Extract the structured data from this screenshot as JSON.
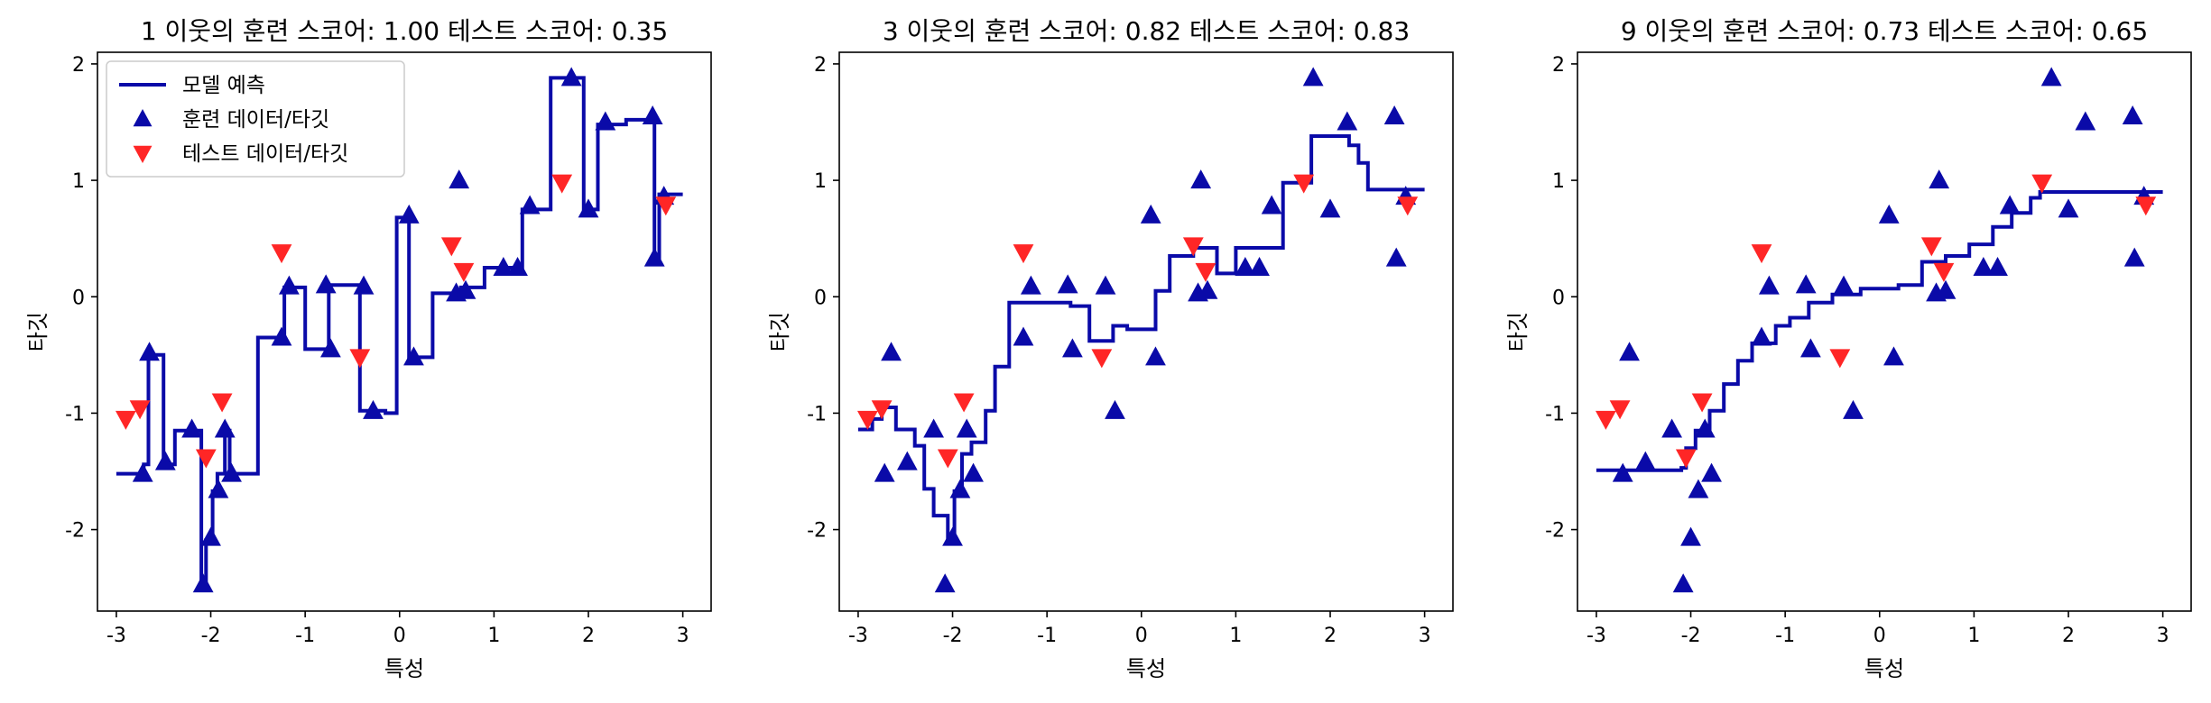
{
  "colors": {
    "prediction": "#0a0aa8",
    "train": "#0a0aa8",
    "test": "#ff2626"
  },
  "chart_data": [
    {
      "type": "line",
      "title": "1 이웃의 훈련 스코어: 1.00 테스트 스코어: 0.35",
      "xlabel": "특성",
      "ylabel": "타깃",
      "xlim": [
        -3.2,
        3.3
      ],
      "ylim": [
        -2.7,
        2.1
      ],
      "xticks": [
        "-3",
        "-2",
        "-1",
        "0",
        "1",
        "2",
        "3"
      ],
      "yticks": [
        "-2",
        "-1",
        "0",
        "1",
        "2"
      ],
      "legend": {
        "position": "upper-left",
        "entries": [
          "모델 예측",
          "훈련 데이터/타깃",
          "테스트 데이터/타깃"
        ]
      },
      "prediction": [
        [
          -3.0,
          -1.52
        ],
        [
          -2.71,
          -1.52
        ],
        [
          -2.71,
          -1.44
        ],
        [
          -2.66,
          -1.44
        ],
        [
          -2.66,
          -0.5
        ],
        [
          -2.5,
          -0.5
        ],
        [
          -2.5,
          -1.44
        ],
        [
          -2.38,
          -1.44
        ],
        [
          -2.38,
          -1.15
        ],
        [
          -2.1,
          -1.15
        ],
        [
          -2.1,
          -2.48
        ],
        [
          -2.05,
          -2.48
        ],
        [
          -2.05,
          -2.09
        ],
        [
          -1.98,
          -2.09
        ],
        [
          -1.98,
          -1.67
        ],
        [
          -1.93,
          -1.67
        ],
        [
          -1.93,
          -1.52
        ],
        [
          -1.85,
          -1.52
        ],
        [
          -1.85,
          -1.15
        ],
        [
          -1.8,
          -1.15
        ],
        [
          -1.8,
          -1.52
        ],
        [
          -1.5,
          -1.52
        ],
        [
          -1.5,
          -0.35
        ],
        [
          -1.22,
          -0.35
        ],
        [
          -1.22,
          0.08
        ],
        [
          -1.0,
          0.08
        ],
        [
          -1.0,
          -0.45
        ],
        [
          -0.75,
          -0.45
        ],
        [
          -0.75,
          0.1
        ],
        [
          -0.42,
          0.1
        ],
        [
          -0.42,
          -0.98
        ],
        [
          -0.15,
          -0.98
        ],
        [
          -0.15,
          -1.0
        ],
        [
          -0.03,
          -1.0
        ],
        [
          -0.03,
          0.68
        ],
        [
          0.1,
          0.68
        ],
        [
          0.1,
          -0.52
        ],
        [
          0.35,
          -0.52
        ],
        [
          0.35,
          0.03
        ],
        [
          0.65,
          0.03
        ],
        [
          0.65,
          0.08
        ],
        [
          0.9,
          0.08
        ],
        [
          0.9,
          0.25
        ],
        [
          1.3,
          0.25
        ],
        [
          1.3,
          0.75
        ],
        [
          1.6,
          0.75
        ],
        [
          1.6,
          1.88
        ],
        [
          1.95,
          1.88
        ],
        [
          1.95,
          0.75
        ],
        [
          2.1,
          0.75
        ],
        [
          2.1,
          1.48
        ],
        [
          2.4,
          1.48
        ],
        [
          2.4,
          1.52
        ],
        [
          2.7,
          1.52
        ],
        [
          2.7,
          0.3
        ],
        [
          2.75,
          0.3
        ],
        [
          2.75,
          0.88
        ],
        [
          3.0,
          0.88
        ]
      ],
      "train": [
        [
          -2.72,
          -1.52
        ],
        [
          -2.65,
          -0.48
        ],
        [
          -2.48,
          -1.42
        ],
        [
          -2.2,
          -1.14
        ],
        [
          -2.08,
          -2.47
        ],
        [
          -2.0,
          -2.07
        ],
        [
          -1.92,
          -1.66
        ],
        [
          -1.85,
          -1.14
        ],
        [
          -1.78,
          -1.52
        ],
        [
          -1.25,
          -0.35
        ],
        [
          -1.17,
          0.09
        ],
        [
          -0.78,
          0.1
        ],
        [
          -0.73,
          -0.45
        ],
        [
          -0.38,
          0.09
        ],
        [
          -0.28,
          -0.98
        ],
        [
          0.1,
          0.7
        ],
        [
          0.15,
          -0.52
        ],
        [
          0.6,
          0.03
        ],
        [
          0.63,
          1.0
        ],
        [
          0.7,
          0.05
        ],
        [
          1.1,
          0.25
        ],
        [
          1.25,
          0.25
        ],
        [
          1.38,
          0.78
        ],
        [
          1.82,
          1.88
        ],
        [
          2.0,
          0.75
        ],
        [
          2.18,
          1.5
        ],
        [
          2.68,
          1.55
        ],
        [
          2.7,
          0.33
        ],
        [
          2.8,
          0.86
        ]
      ],
      "test": [
        [
          -2.9,
          -1.05
        ],
        [
          -2.75,
          -0.96
        ],
        [
          -2.05,
          -1.38
        ],
        [
          -1.88,
          -0.9
        ],
        [
          -1.25,
          0.38
        ],
        [
          -0.42,
          -0.52
        ],
        [
          0.55,
          0.44
        ],
        [
          0.68,
          0.22
        ],
        [
          1.72,
          0.98
        ],
        [
          2.82,
          0.79
        ]
      ]
    },
    {
      "type": "line",
      "title": "3 이웃의 훈련 스코어: 0.82 테스트 스코어: 0.83",
      "xlabel": "특성",
      "ylabel": "타깃",
      "xlim": [
        -3.2,
        3.3
      ],
      "ylim": [
        -2.7,
        2.1
      ],
      "xticks": [
        "-3",
        "-2",
        "-1",
        "0",
        "1",
        "2",
        "3"
      ],
      "yticks": [
        "-2",
        "-1",
        "0",
        "1",
        "2"
      ],
      "prediction": [
        [
          -3.0,
          -1.14
        ],
        [
          -2.85,
          -1.14
        ],
        [
          -2.85,
          -1.05
        ],
        [
          -2.75,
          -1.05
        ],
        [
          -2.75,
          -0.95
        ],
        [
          -2.6,
          -0.95
        ],
        [
          -2.6,
          -1.14
        ],
        [
          -2.4,
          -1.14
        ],
        [
          -2.4,
          -1.28
        ],
        [
          -2.3,
          -1.28
        ],
        [
          -2.3,
          -1.65
        ],
        [
          -2.2,
          -1.65
        ],
        [
          -2.2,
          -1.88
        ],
        [
          -2.05,
          -1.88
        ],
        [
          -2.05,
          -2.09
        ],
        [
          -1.98,
          -2.09
        ],
        [
          -1.98,
          -1.67
        ],
        [
          -1.9,
          -1.67
        ],
        [
          -1.9,
          -1.35
        ],
        [
          -1.8,
          -1.35
        ],
        [
          -1.8,
          -1.25
        ],
        [
          -1.65,
          -1.25
        ],
        [
          -1.65,
          -0.98
        ],
        [
          -1.55,
          -0.98
        ],
        [
          -1.55,
          -0.6
        ],
        [
          -1.4,
          -0.6
        ],
        [
          -1.4,
          -0.05
        ],
        [
          -0.75,
          -0.05
        ],
        [
          -0.75,
          -0.08
        ],
        [
          -0.55,
          -0.08
        ],
        [
          -0.55,
          -0.38
        ],
        [
          -0.3,
          -0.38
        ],
        [
          -0.3,
          -0.25
        ],
        [
          -0.15,
          -0.25
        ],
        [
          -0.15,
          -0.28
        ],
        [
          0.15,
          -0.28
        ],
        [
          0.15,
          0.05
        ],
        [
          0.3,
          0.05
        ],
        [
          0.3,
          0.35
        ],
        [
          0.55,
          0.35
        ],
        [
          0.55,
          0.42
        ],
        [
          0.8,
          0.42
        ],
        [
          0.8,
          0.2
        ],
        [
          1.0,
          0.2
        ],
        [
          1.0,
          0.42
        ],
        [
          1.5,
          0.42
        ],
        [
          1.5,
          0.98
        ],
        [
          1.8,
          0.98
        ],
        [
          1.8,
          1.38
        ],
        [
          2.2,
          1.38
        ],
        [
          2.2,
          1.3
        ],
        [
          2.3,
          1.3
        ],
        [
          2.3,
          1.15
        ],
        [
          2.4,
          1.15
        ],
        [
          2.4,
          0.92
        ],
        [
          3.0,
          0.92
        ]
      ],
      "train": [
        [
          -2.72,
          -1.52
        ],
        [
          -2.65,
          -0.48
        ],
        [
          -2.48,
          -1.42
        ],
        [
          -2.2,
          -1.14
        ],
        [
          -2.08,
          -2.47
        ],
        [
          -2.0,
          -2.07
        ],
        [
          -1.92,
          -1.66
        ],
        [
          -1.85,
          -1.14
        ],
        [
          -1.78,
          -1.52
        ],
        [
          -1.25,
          -0.35
        ],
        [
          -1.17,
          0.09
        ],
        [
          -0.78,
          0.1
        ],
        [
          -0.73,
          -0.45
        ],
        [
          -0.38,
          0.09
        ],
        [
          -0.28,
          -0.98
        ],
        [
          0.1,
          0.7
        ],
        [
          0.15,
          -0.52
        ],
        [
          0.6,
          0.03
        ],
        [
          0.63,
          1.0
        ],
        [
          0.7,
          0.05
        ],
        [
          1.1,
          0.25
        ],
        [
          1.25,
          0.25
        ],
        [
          1.38,
          0.78
        ],
        [
          1.82,
          1.88
        ],
        [
          2.0,
          0.75
        ],
        [
          2.18,
          1.5
        ],
        [
          2.68,
          1.55
        ],
        [
          2.7,
          0.33
        ],
        [
          2.8,
          0.86
        ]
      ],
      "test": [
        [
          -2.9,
          -1.05
        ],
        [
          -2.75,
          -0.96
        ],
        [
          -2.05,
          -1.38
        ],
        [
          -1.88,
          -0.9
        ],
        [
          -1.25,
          0.38
        ],
        [
          -0.42,
          -0.52
        ],
        [
          0.55,
          0.44
        ],
        [
          0.68,
          0.22
        ],
        [
          1.72,
          0.98
        ],
        [
          2.82,
          0.79
        ]
      ]
    },
    {
      "type": "line",
      "title": "9 이웃의 훈련 스코어: 0.73 테스트 스코어: 0.65",
      "xlabel": "특성",
      "ylabel": "타깃",
      "xlim": [
        -3.2,
        3.3
      ],
      "ylim": [
        -2.7,
        2.1
      ],
      "xticks": [
        "-3",
        "-2",
        "-1",
        "0",
        "1",
        "2",
        "3"
      ],
      "yticks": [
        "-2",
        "-1",
        "0",
        "1",
        "2"
      ],
      "prediction": [
        [
          -3.0,
          -1.49
        ],
        [
          -2.1,
          -1.49
        ],
        [
          -2.1,
          -1.47
        ],
        [
          -2.05,
          -1.47
        ],
        [
          -2.05,
          -1.3
        ],
        [
          -1.95,
          -1.3
        ],
        [
          -1.95,
          -1.15
        ],
        [
          -1.8,
          -1.15
        ],
        [
          -1.8,
          -0.98
        ],
        [
          -1.65,
          -0.98
        ],
        [
          -1.65,
          -0.75
        ],
        [
          -1.5,
          -0.75
        ],
        [
          -1.5,
          -0.55
        ],
        [
          -1.35,
          -0.55
        ],
        [
          -1.35,
          -0.4
        ],
        [
          -1.1,
          -0.4
        ],
        [
          -1.1,
          -0.25
        ],
        [
          -0.95,
          -0.25
        ],
        [
          -0.95,
          -0.18
        ],
        [
          -0.75,
          -0.18
        ],
        [
          -0.75,
          -0.05
        ],
        [
          -0.5,
          -0.05
        ],
        [
          -0.5,
          0.02
        ],
        [
          -0.2,
          0.02
        ],
        [
          -0.2,
          0.07
        ],
        [
          0.2,
          0.07
        ],
        [
          0.2,
          0.1
        ],
        [
          0.45,
          0.1
        ],
        [
          0.45,
          0.3
        ],
        [
          0.7,
          0.3
        ],
        [
          0.7,
          0.35
        ],
        [
          0.95,
          0.35
        ],
        [
          0.95,
          0.45
        ],
        [
          1.2,
          0.45
        ],
        [
          1.2,
          0.6
        ],
        [
          1.4,
          0.6
        ],
        [
          1.4,
          0.72
        ],
        [
          1.6,
          0.72
        ],
        [
          1.6,
          0.85
        ],
        [
          1.7,
          0.85
        ],
        [
          1.7,
          0.9
        ],
        [
          3.0,
          0.9
        ]
      ],
      "train": [
        [
          -2.72,
          -1.52
        ],
        [
          -2.65,
          -0.48
        ],
        [
          -2.48,
          -1.42
        ],
        [
          -2.2,
          -1.14
        ],
        [
          -2.08,
          -2.47
        ],
        [
          -2.0,
          -2.07
        ],
        [
          -1.92,
          -1.66
        ],
        [
          -1.85,
          -1.14
        ],
        [
          -1.78,
          -1.52
        ],
        [
          -1.25,
          -0.35
        ],
        [
          -1.17,
          0.09
        ],
        [
          -0.78,
          0.1
        ],
        [
          -0.73,
          -0.45
        ],
        [
          -0.38,
          0.09
        ],
        [
          -0.28,
          -0.98
        ],
        [
          0.1,
          0.7
        ],
        [
          0.15,
          -0.52
        ],
        [
          0.6,
          0.03
        ],
        [
          0.63,
          1.0
        ],
        [
          0.7,
          0.05
        ],
        [
          1.1,
          0.25
        ],
        [
          1.25,
          0.25
        ],
        [
          1.38,
          0.78
        ],
        [
          1.82,
          1.88
        ],
        [
          2.0,
          0.75
        ],
        [
          2.18,
          1.5
        ],
        [
          2.68,
          1.55
        ],
        [
          2.7,
          0.33
        ],
        [
          2.8,
          0.86
        ]
      ],
      "test": [
        [
          -2.9,
          -1.05
        ],
        [
          -2.75,
          -0.96
        ],
        [
          -2.05,
          -1.38
        ],
        [
          -1.88,
          -0.9
        ],
        [
          -1.25,
          0.38
        ],
        [
          -0.42,
          -0.52
        ],
        [
          0.55,
          0.44
        ],
        [
          0.68,
          0.22
        ],
        [
          1.72,
          0.98
        ],
        [
          2.82,
          0.79
        ]
      ]
    }
  ]
}
